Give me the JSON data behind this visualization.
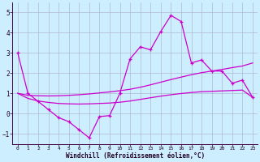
{
  "background_color": "#cceeff",
  "grid_color": "#b0b8d0",
  "line_color": "#cc00cc",
  "x_label": "Windchill (Refroidissement éolien,°C)",
  "ylim": [
    -1.5,
    5.5
  ],
  "xlim": [
    -0.5,
    23.5
  ],
  "yticks": [
    -1,
    0,
    1,
    2,
    3,
    4,
    5
  ],
  "xticks": [
    0,
    1,
    2,
    3,
    4,
    5,
    6,
    7,
    8,
    9,
    10,
    11,
    12,
    13,
    14,
    15,
    16,
    17,
    18,
    19,
    20,
    21,
    22,
    23
  ],
  "series1_x": [
    0,
    1,
    2,
    3,
    4,
    5,
    6,
    7,
    8,
    9,
    10,
    11,
    12,
    13,
    14,
    15,
    16,
    17,
    18,
    19,
    20,
    21,
    22,
    23
  ],
  "series1_y": [
    3.0,
    1.0,
    0.6,
    0.2,
    -0.2,
    -0.4,
    -0.8,
    -1.2,
    -0.15,
    -0.1,
    1.0,
    2.7,
    3.3,
    3.15,
    4.05,
    4.85,
    4.55,
    2.5,
    2.65,
    2.1,
    2.1,
    1.5,
    1.65,
    0.8
  ],
  "series2_x": [
    0,
    1,
    2,
    3,
    4,
    5,
    6,
    7,
    8,
    9,
    10,
    11,
    12,
    13,
    14,
    15,
    16,
    17,
    18,
    19,
    20,
    21,
    22,
    23
  ],
  "series2_y": [
    1.0,
    0.9,
    0.88,
    0.87,
    0.88,
    0.9,
    0.93,
    0.97,
    1.02,
    1.07,
    1.13,
    1.2,
    1.3,
    1.42,
    1.55,
    1.68,
    1.8,
    1.92,
    2.02,
    2.1,
    2.18,
    2.27,
    2.35,
    2.5
  ],
  "series3_x": [
    0,
    1,
    2,
    3,
    4,
    5,
    6,
    7,
    8,
    9,
    10,
    11,
    12,
    13,
    14,
    15,
    16,
    17,
    18,
    19,
    20,
    21,
    22,
    23
  ],
  "series3_y": [
    1.0,
    0.75,
    0.62,
    0.55,
    0.5,
    0.48,
    0.47,
    0.48,
    0.5,
    0.52,
    0.56,
    0.62,
    0.7,
    0.78,
    0.86,
    0.93,
    0.99,
    1.04,
    1.08,
    1.1,
    1.12,
    1.14,
    1.16,
    0.8
  ]
}
